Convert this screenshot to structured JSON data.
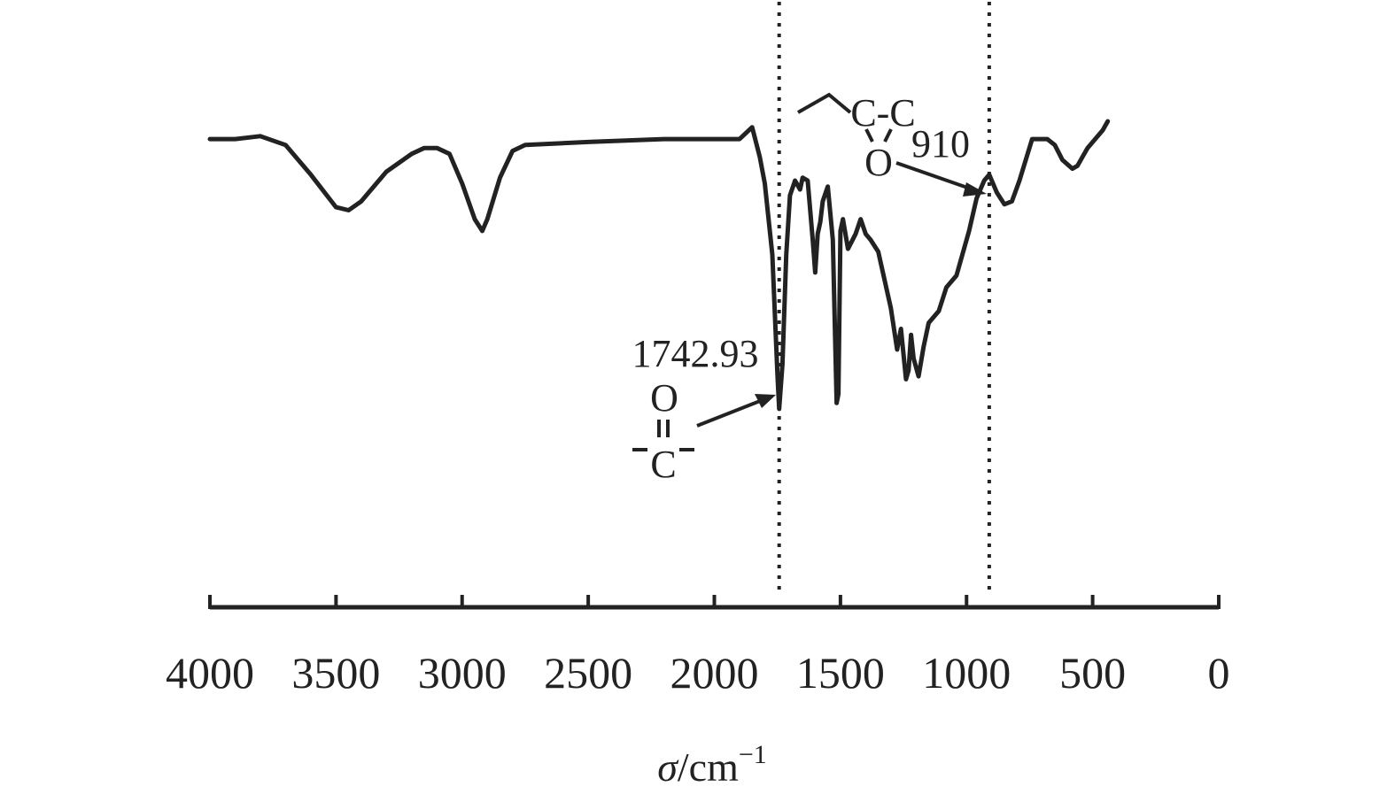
{
  "chart_data": {
    "type": "line",
    "title": "",
    "xlabel": "σ/cm",
    "xlabel_superscript": "−1",
    "ylabel": "",
    "xlim": [
      4000,
      0
    ],
    "x_reversed": true,
    "ticks": [
      "4000",
      "3500",
      "3000",
      "2500",
      "2000",
      "1500",
      "1000",
      "500",
      "0"
    ],
    "y_axis_shown": false,
    "grid": false,
    "reference_lines": [
      1742.93,
      910
    ],
    "series": [
      {
        "points": [
          [
            4000,
            0.06
          ],
          [
            3900,
            0.06
          ],
          [
            3800,
            0.05
          ],
          [
            3700,
            0.08
          ],
          [
            3600,
            0.18
          ],
          [
            3500,
            0.29
          ],
          [
            3450,
            0.3
          ],
          [
            3400,
            0.27
          ],
          [
            3300,
            0.17
          ],
          [
            3200,
            0.11
          ],
          [
            3150,
            0.09
          ],
          [
            3100,
            0.09
          ],
          [
            3050,
            0.11
          ],
          [
            3000,
            0.21
          ],
          [
            2950,
            0.33
          ],
          [
            2920,
            0.37
          ],
          [
            2900,
            0.33
          ],
          [
            2850,
            0.19
          ],
          [
            2800,
            0.1
          ],
          [
            2750,
            0.08
          ],
          [
            2500,
            0.07
          ],
          [
            2200,
            0.06
          ],
          [
            2000,
            0.06
          ],
          [
            1900,
            0.06
          ],
          [
            1850,
            0.02
          ],
          [
            1820,
            0.12
          ],
          [
            1800,
            0.21
          ],
          [
            1770,
            0.45
          ],
          [
            1750,
            0.85
          ],
          [
            1742.93,
            0.97
          ],
          [
            1730,
            0.82
          ],
          [
            1715,
            0.45
          ],
          [
            1700,
            0.25
          ],
          [
            1680,
            0.2
          ],
          [
            1660,
            0.23
          ],
          [
            1650,
            0.19
          ],
          [
            1630,
            0.2
          ],
          [
            1610,
            0.4
          ],
          [
            1600,
            0.51
          ],
          [
            1590,
            0.38
          ],
          [
            1580,
            0.34
          ],
          [
            1570,
            0.27
          ],
          [
            1550,
            0.22
          ],
          [
            1530,
            0.4
          ],
          [
            1515,
            0.95
          ],
          [
            1508,
            0.92
          ],
          [
            1500,
            0.37
          ],
          [
            1490,
            0.33
          ],
          [
            1470,
            0.43
          ],
          [
            1440,
            0.38
          ],
          [
            1420,
            0.33
          ],
          [
            1400,
            0.38
          ],
          [
            1380,
            0.4
          ],
          [
            1350,
            0.44
          ],
          [
            1300,
            0.63
          ],
          [
            1275,
            0.77
          ],
          [
            1260,
            0.7
          ],
          [
            1240,
            0.87
          ],
          [
            1230,
            0.84
          ],
          [
            1220,
            0.72
          ],
          [
            1210,
            0.8
          ],
          [
            1190,
            0.86
          ],
          [
            1170,
            0.76
          ],
          [
            1150,
            0.68
          ],
          [
            1110,
            0.64
          ],
          [
            1080,
            0.56
          ],
          [
            1040,
            0.52
          ],
          [
            990,
            0.37
          ],
          [
            960,
            0.26
          ],
          [
            930,
            0.2
          ],
          [
            910,
            0.18
          ],
          [
            880,
            0.24
          ],
          [
            850,
            0.28
          ],
          [
            820,
            0.27
          ],
          [
            790,
            0.2
          ],
          [
            740,
            0.06
          ],
          [
            700,
            0.06
          ],
          [
            680,
            0.06
          ],
          [
            650,
            0.08
          ],
          [
            620,
            0.13
          ],
          [
            580,
            0.16
          ],
          [
            560,
            0.15
          ],
          [
            540,
            0.12
          ],
          [
            520,
            0.09
          ],
          [
            490,
            0.06
          ],
          [
            460,
            0.03
          ],
          [
            440,
            0.0
          ]
        ]
      }
    ],
    "annotations": [
      {
        "x": 1742.93,
        "label": "1742.93",
        "group_top": "O",
        "group_bottom": "C"
      },
      {
        "x": 910,
        "label": "910",
        "group_top": "C-C",
        "group_bottom": "O"
      }
    ]
  }
}
